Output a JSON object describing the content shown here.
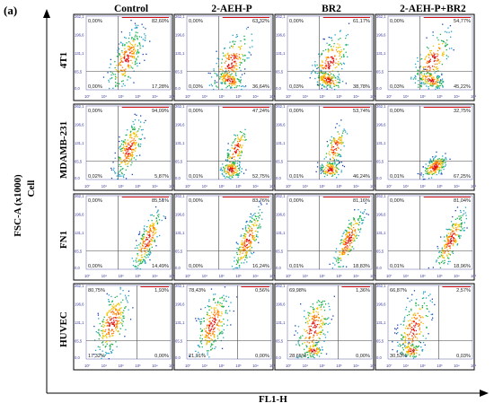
{
  "panel_label": "(a)",
  "chart_data": {
    "type": "scatter",
    "columns": [
      "Control",
      "2-AEH-P",
      "BR2",
      "2-AEH-P+BR2"
    ],
    "rows": [
      "4T1",
      "MDAMB-231",
      "FN1",
      "HUVEC"
    ],
    "group_label": "Cell",
    "xlabel": "FL1-H",
    "ylabel": "FSC-A (x1000)",
    "y_ticks": [
      "0,0",
      "65,5",
      "131,1",
      "196,6",
      "262,1"
    ],
    "x_ticks": [
      "10⁰",
      "10¹",
      "10²",
      "10³",
      "10⁴",
      "10⁵"
    ],
    "grid": [
      [
        {
          "ul": "0,00%",
          "ur": "82,60%",
          "ll": "0,00%",
          "lr": "17,28%"
        },
        {
          "ul": "0,00%",
          "ur": "63,32%",
          "ll": "0,03%",
          "lr": "36,64%"
        },
        {
          "ul": "0,00%",
          "ur": "61,17%",
          "ll": "0,03%",
          "lr": "38,78%"
        },
        {
          "ul": "0,00%",
          "ur": "54,77%",
          "ll": "0,03%",
          "lr": "45,22%"
        }
      ],
      [
        {
          "ul": "0,00%",
          "ur": "94,09%",
          "ll": "0,02%",
          "lr": "5,87%"
        },
        {
          "ul": "0,00%",
          "ur": "47,24%",
          "ll": "0,01%",
          "lr": "52,75%"
        },
        {
          "ul": "0,00%",
          "ur": "53,74%",
          "ll": "0,01%",
          "lr": "46,24%"
        },
        {
          "ul": "0,00%",
          "ur": "32,75%",
          "ll": "0,01%",
          "lr": "67,25%"
        }
      ],
      [
        {
          "ul": "0,00%",
          "ur": "85,51%",
          "ll": "0,00%",
          "lr": "14,49%"
        },
        {
          "ul": "0,00%",
          "ur": "83,76%",
          "ll": "0,00%",
          "lr": "16,24%"
        },
        {
          "ul": "0,00%",
          "ur": "81,16%",
          "ll": "0,01%",
          "lr": "18,83%"
        },
        {
          "ul": "0,00%",
          "ur": "81,04%",
          "ll": "0,01%",
          "lr": "18,96%"
        }
      ],
      [
        {
          "ul": "80,75%",
          "ur": "1,93%",
          "ll": "17,32%",
          "lr": "0,00%"
        },
        {
          "ul": "78,43%",
          "ur": "0,56%",
          "ll": "21,01%",
          "lr": "0,00%"
        },
        {
          "ul": "69,98%",
          "ur": "1,36%",
          "ll": "28,65%",
          "lr": "0,00%"
        },
        {
          "ul": "66,87%",
          "ur": "2,57%",
          "ll": "30,53%",
          "lr": "0,03%"
        }
      ]
    ],
    "colors": {
      "low": "#1a3fb0",
      "mid": "#18b04a",
      "high": "#f2c200",
      "peak": "#e01010",
      "gate": "#444444",
      "top_gate": "#d01010",
      "tick_text": "#3a3aa0"
    }
  }
}
